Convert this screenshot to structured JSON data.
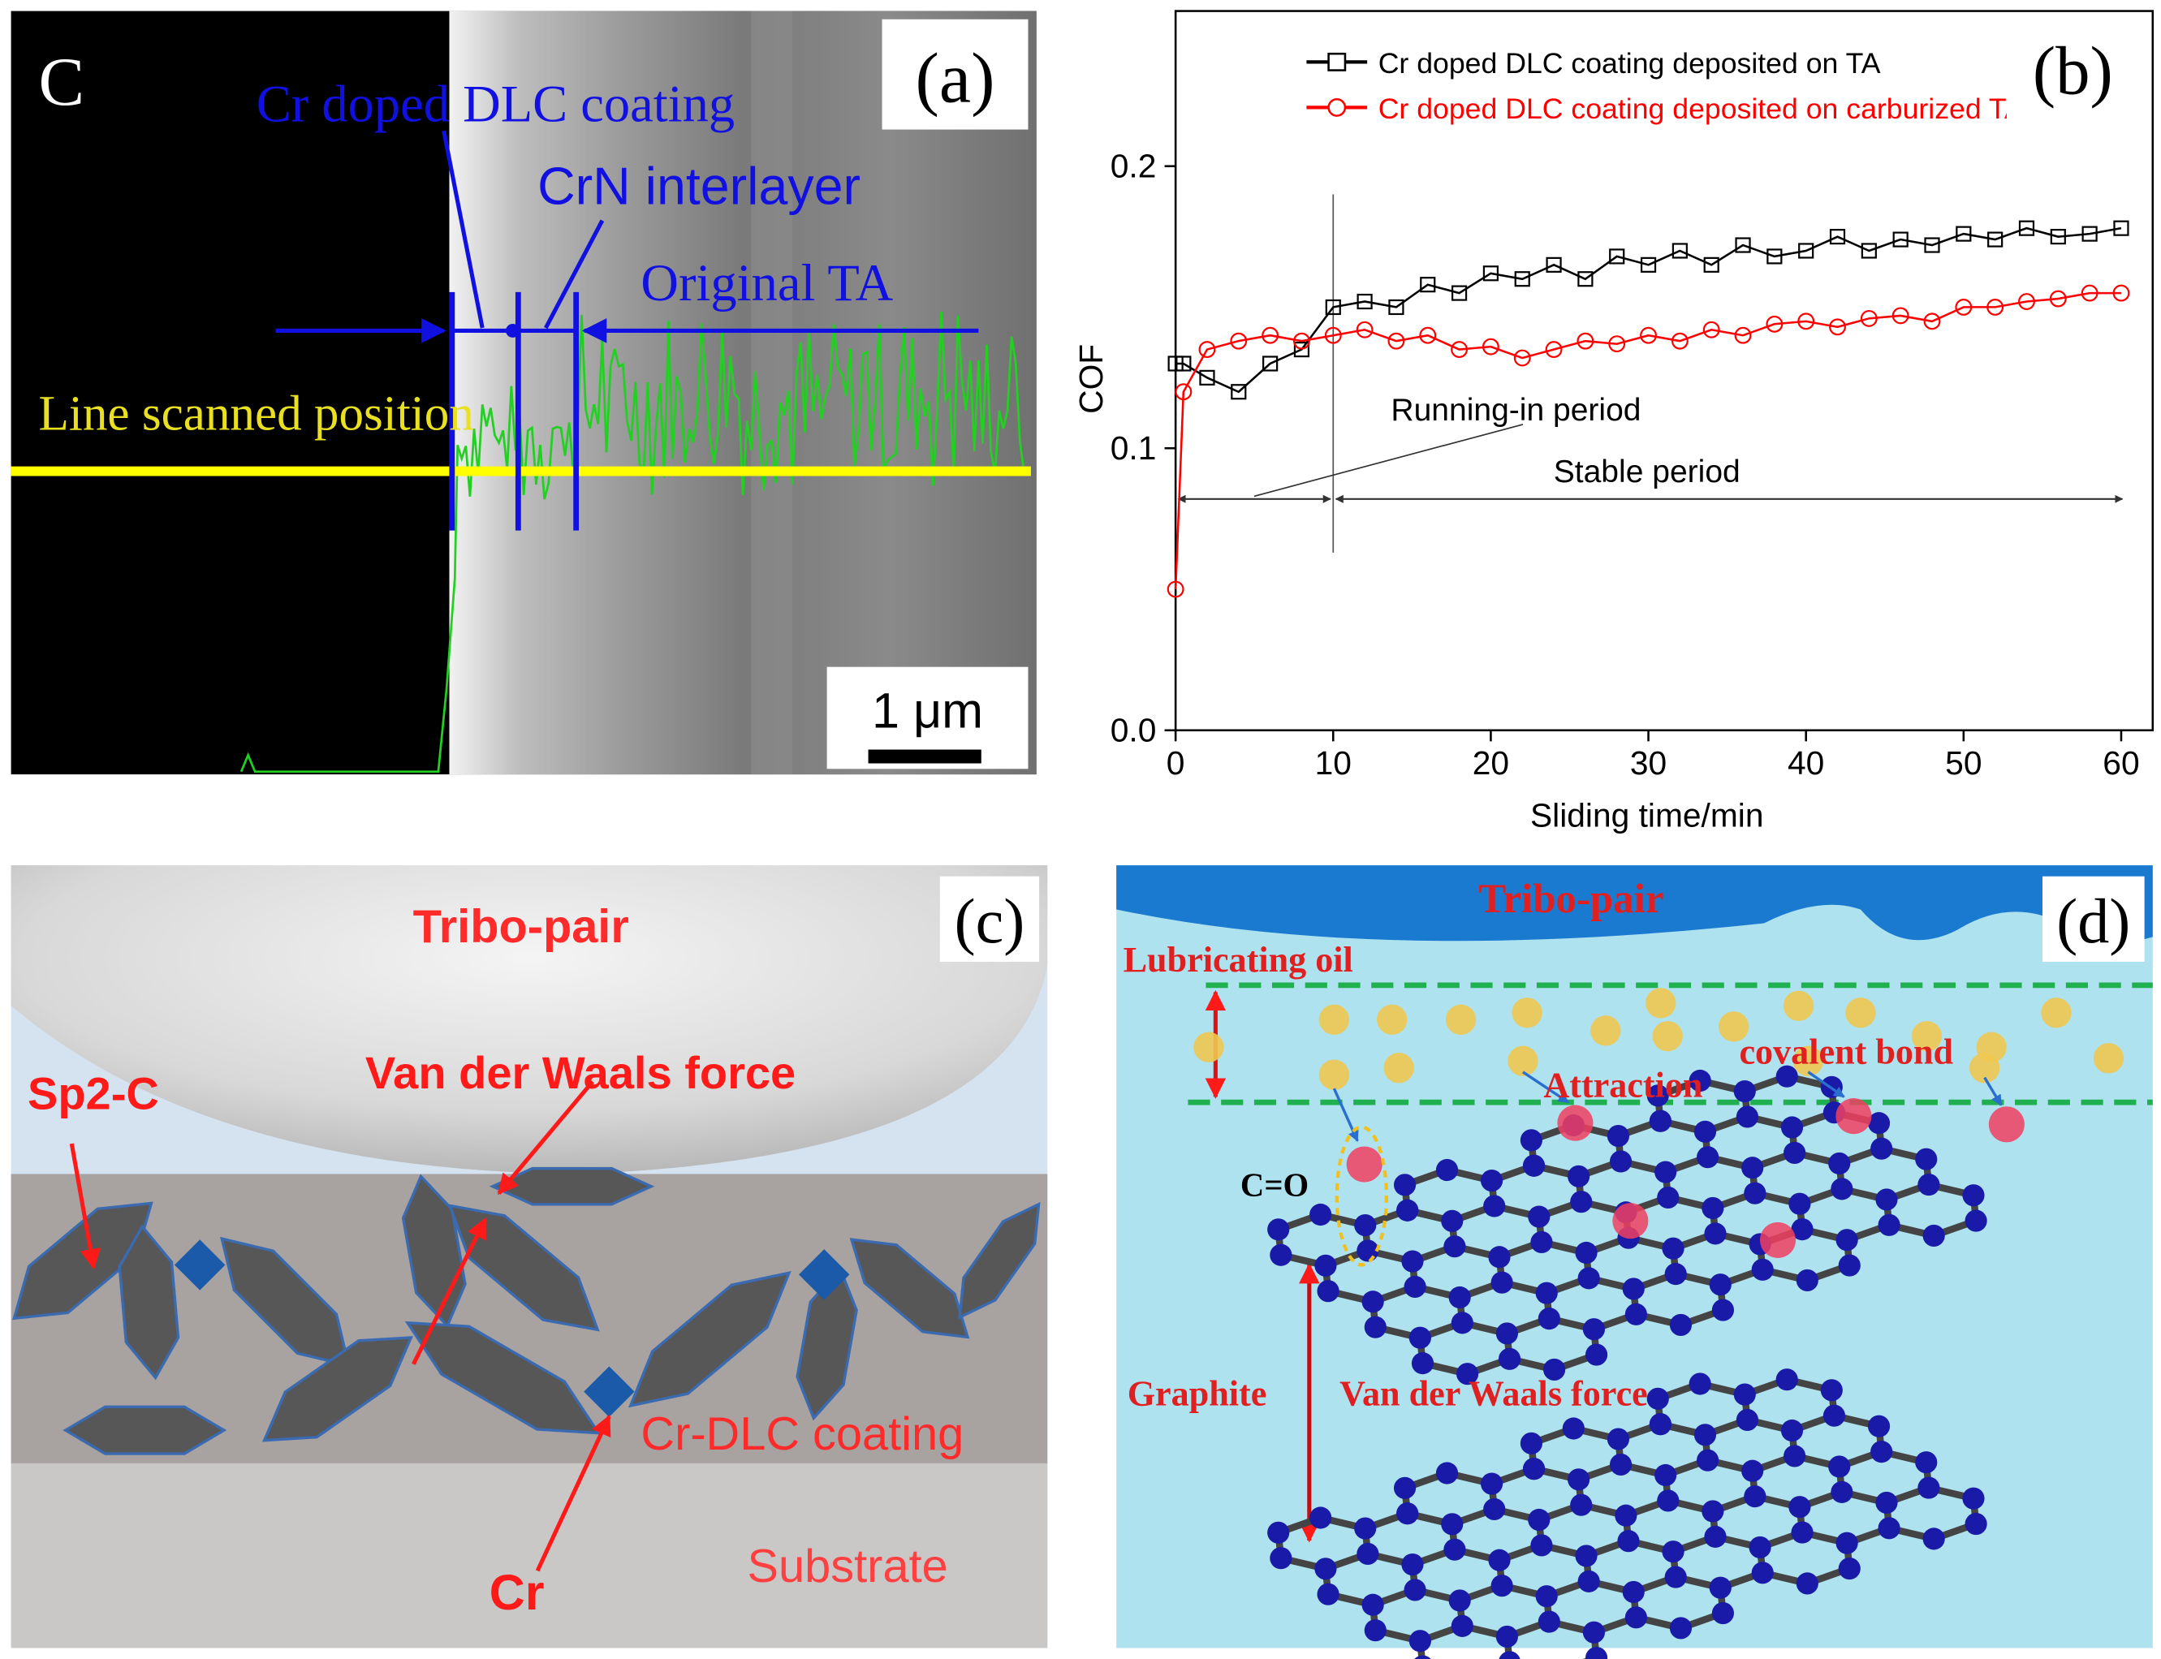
{
  "panel_a": {
    "corner_letter": "C",
    "label": "(a)",
    "annotations": [
      "Cr doped DLC coating",
      "CrN interlayer",
      "Original TA"
    ],
    "scan_label": "Line scanned position",
    "scale_bar": "1 μm"
  },
  "chart_data": {
    "type": "line",
    "label": "(b)",
    "x_label": "Sliding time/min",
    "y_label": "COF",
    "x": [
      0,
      0.5,
      2,
      4,
      6,
      8,
      10,
      12,
      14,
      16,
      18,
      20,
      22,
      24,
      26,
      28,
      30,
      32,
      34,
      36,
      38,
      40,
      42,
      44,
      46,
      48,
      50,
      52,
      54,
      56,
      58,
      60
    ],
    "series": [
      {
        "name": "Cr doped DLC coating deposited on TA",
        "color": "#000000",
        "marker": "square",
        "values": [
          0.13,
          0.13,
          0.125,
          0.12,
          0.13,
          0.135,
          0.15,
          0.152,
          0.15,
          0.158,
          0.155,
          0.162,
          0.16,
          0.165,
          0.16,
          0.168,
          0.165,
          0.17,
          0.165,
          0.172,
          0.168,
          0.17,
          0.175,
          0.17,
          0.174,
          0.172,
          0.176,
          0.174,
          0.178,
          0.175,
          0.176,
          0.178
        ]
      },
      {
        "name": "Cr doped DLC coating deposited on carburized TA",
        "color": "#ff0000",
        "marker": "circle",
        "values": [
          0.05,
          0.12,
          0.135,
          0.138,
          0.14,
          0.138,
          0.14,
          0.142,
          0.138,
          0.14,
          0.135,
          0.136,
          0.132,
          0.135,
          0.138,
          0.137,
          0.14,
          0.138,
          0.142,
          0.14,
          0.144,
          0.145,
          0.143,
          0.146,
          0.147,
          0.145,
          0.15,
          0.15,
          0.152,
          0.153,
          0.155,
          0.155
        ]
      }
    ],
    "xlim": [
      0,
      62
    ],
    "ylim": [
      0,
      0.255
    ],
    "xticks": [
      0,
      10,
      20,
      30,
      40,
      50,
      60
    ],
    "yticks": [
      {
        "value": 0,
        "label": "0.0"
      },
      0.1,
      0.2
    ],
    "legend": "upper center",
    "period_boundary": 10,
    "annotations": [
      "Running-in period",
      "Stable period"
    ]
  },
  "panel_c": {
    "label": "(c)",
    "texts": [
      "Tribo-pair",
      "Van der Waals force",
      "Sp2-C",
      "Cr-DLC coating",
      "Cr",
      "Substrate"
    ]
  },
  "panel_d": {
    "label": "(d)",
    "texts": [
      "Tribo-pair",
      "Lubricating oil",
      "covalent bond",
      "Attraction",
      "C=O",
      "Graphite",
      "Van der Waals force"
    ]
  }
}
